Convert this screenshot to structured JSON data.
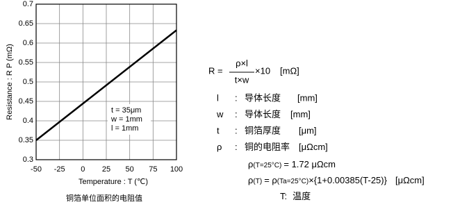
{
  "chart_data": {
    "type": "line",
    "x_label": "Temperature : T (℃)",
    "y_label": "Resistance : R P (mΩ)",
    "caption": "铜箔单位面积的电阻值",
    "x": [
      -50,
      100
    ],
    "series": [
      {
        "name": "R",
        "color": "#000000",
        "values": [
          0.35,
          0.633
        ]
      }
    ],
    "xlim": [
      -50,
      100
    ],
    "xticks": [
      -50,
      -25,
      0,
      25,
      50,
      75,
      100
    ],
    "ylim": [
      0.3,
      0.7
    ],
    "yticks": [
      0.3,
      0.35,
      0.4,
      0.45,
      0.5,
      0.55,
      0.6,
      0.65,
      0.7
    ],
    "grid": true,
    "annotations": [
      "t = 35μm",
      "w = 1mm",
      "l = 1mm"
    ]
  },
  "formula": {
    "lhs": "R =",
    "numerator": "ρ×l",
    "denominator": "t×w",
    "factor": "×10",
    "unit": "[mΩ]",
    "separator": ":",
    "definitions": [
      {
        "symbol": "l",
        "desc": "导体长度",
        "unit": "[mm]"
      },
      {
        "symbol": "w",
        "desc": "导体长度",
        "unit": "[mm]"
      },
      {
        "symbol": "t",
        "desc": "铜箔厚度",
        "unit": "[μm]"
      },
      {
        "symbol": "ρ",
        "desc": "铜的电阻率",
        "unit": "[μΩcm]"
      }
    ],
    "rho25": [
      "ρ",
      "(T=25°C)",
      "= 1.72 μΩcm"
    ],
    "rhoT": [
      "ρ",
      "(T)",
      "= ρ",
      "(Ta=25°C)",
      "×{1+0.00385(T-25)}",
      "[μΩcm]"
    ],
    "temp": [
      "T:",
      "温度"
    ]
  }
}
